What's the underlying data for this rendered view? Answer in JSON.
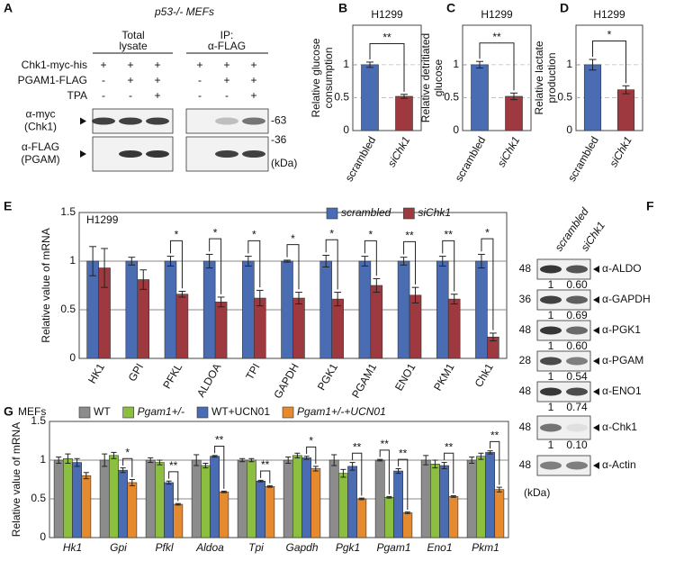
{
  "chart_data": [
    {
      "label": "B",
      "type": "bar",
      "title": "H1299",
      "ylabel": [
        "Relative glucose",
        "consumption"
      ],
      "categories": [
        "scrambled",
        "siChk1"
      ],
      "values": [
        1.0,
        0.52
      ],
      "errors": [
        0.04,
        0.03
      ],
      "colors": [
        "#4a6cb3",
        "#9e3a3f"
      ],
      "ylim": [
        0,
        1.6
      ],
      "yticks": [
        0,
        0.5,
        1
      ],
      "grid": true,
      "significance": "**"
    },
    {
      "label": "C",
      "type": "bar",
      "title": "H1299",
      "ylabel": [
        "Relative detritiated",
        "glucose"
      ],
      "categories": [
        "scrambled",
        "siChk1"
      ],
      "values": [
        1.0,
        0.52
      ],
      "errors": [
        0.05,
        0.05
      ],
      "colors": [
        "#4a6cb3",
        "#9e3a3f"
      ],
      "ylim": [
        0,
        1.6
      ],
      "yticks": [
        0,
        0.5,
        1
      ],
      "grid": true,
      "significance": "**"
    },
    {
      "label": "D",
      "type": "bar",
      "title": "H1299",
      "ylabel": [
        "Relative lactate",
        "production"
      ],
      "categories": [
        "scrambled",
        "siChk1"
      ],
      "values": [
        1.0,
        0.62
      ],
      "errors": [
        0.08,
        0.06
      ],
      "colors": [
        "#4a6cb3",
        "#9e3a3f"
      ],
      "ylim": [
        0,
        1.6
      ],
      "yticks": [
        0,
        0.5,
        1
      ],
      "grid": true,
      "significance": "*"
    },
    {
      "label": "E",
      "type": "grouped-bar",
      "annotation": "H1299",
      "ylabel": [
        "Relative value of mRNA"
      ],
      "categories": [
        "HK1",
        "GPI",
        "PFKL",
        "ALDOA",
        "TPI",
        "GAPDH",
        "PGK1",
        "PGAM1",
        "ENO1",
        "PKM1",
        "Chk1"
      ],
      "series": [
        {
          "name": "scrambled",
          "color": "#4a6cb3",
          "values": [
            1,
            1,
            1,
            1,
            1,
            1,
            1,
            1,
            1,
            1,
            1
          ],
          "errors": [
            0.15,
            0.04,
            0.05,
            0.07,
            0.05,
            0.01,
            0.06,
            0.05,
            0.04,
            0.05,
            0.07
          ]
        },
        {
          "name": "siChk1",
          "color": "#9e3a3f",
          "values": [
            0.93,
            0.81,
            0.66,
            0.58,
            0.62,
            0.62,
            0.61,
            0.75,
            0.65,
            0.61,
            0.22
          ],
          "errors": [
            0.2,
            0.1,
            0.03,
            0.05,
            0.08,
            0.06,
            0.07,
            0.07,
            0.08,
            0.05,
            0.04
          ]
        }
      ],
      "significance": [
        [],
        [],
        [
          "*"
        ],
        [
          "*"
        ],
        [
          "*"
        ],
        [
          "*"
        ],
        [
          "*"
        ],
        [
          "*"
        ],
        [
          "**"
        ],
        [
          "**"
        ],
        [
          "*"
        ]
      ],
      "ylim": [
        0,
        1.5
      ],
      "yticks": [
        0,
        0.5,
        1,
        1.5
      ],
      "grid": true,
      "legend": "top-right",
      "rotate_labels": true
    },
    {
      "label": "G",
      "type": "grouped-bar",
      "annotation": "MEFs",
      "ylabel": [
        "Relative value of mRNA"
      ],
      "categories": [
        "Hk1",
        "Gpi",
        "Pfkl",
        "Aldoa",
        "Tpi",
        "Gapdh",
        "Pgk1",
        "Pgam1",
        "Eno1",
        "Pkm1"
      ],
      "series": [
        {
          "name": "WT",
          "color": "#8c8c8c",
          "values": [
            1,
            1,
            1,
            1,
            1,
            1,
            1,
            1,
            1,
            1
          ],
          "errors": [
            0.04,
            0.08,
            0.03,
            0.07,
            0.02,
            0.04,
            0.07,
            0.01,
            0.06,
            0.04
          ]
        },
        {
          "name": "Pgam1+/-",
          "color": "#8cbf3f",
          "values": [
            1.02,
            1.06,
            0.97,
            0.93,
            1.0,
            1.06,
            0.83,
            0.52,
            0.95,
            1.05
          ],
          "errors": [
            0.06,
            0.04,
            0.03,
            0.03,
            0.02,
            0.03,
            0.05,
            0.01,
            0.05,
            0.04
          ]
        },
        {
          "name": "WT+UCN01",
          "color": "#4a6cb3",
          "values": [
            0.97,
            0.87,
            0.71,
            1.05,
            0.73,
            1.03,
            0.92,
            0.86,
            0.93,
            1.1
          ],
          "errors": [
            0.05,
            0.03,
            0.02,
            0.01,
            0.01,
            0.02,
            0.05,
            0.03,
            0.04,
            0.02
          ]
        },
        {
          "name": "Pgam1+/-+UCN01",
          "color": "#e58a2e",
          "values": [
            0.8,
            0.71,
            0.43,
            0.59,
            0.66,
            0.89,
            0.5,
            0.32,
            0.53,
            0.62
          ],
          "errors": [
            0.04,
            0.04,
            0.01,
            0.01,
            0.01,
            0.03,
            0.01,
            0.01,
            0.01,
            0.03
          ]
        }
      ],
      "significance": [
        [],
        [
          "*"
        ],
        [
          "**"
        ],
        [
          "**"
        ],
        [
          "**"
        ],
        [
          "*"
        ],
        [
          "**"
        ],
        [
          "**",
          "**"
        ],
        [
          "**"
        ],
        [
          "**"
        ]
      ],
      "ylim": [
        0,
        1.5
      ],
      "yticks": [
        0,
        0.5,
        1,
        1.5
      ],
      "grid": true,
      "legend": "top"
    }
  ],
  "blot_a": {
    "label": "A",
    "title": "p53-/- MEFs",
    "groups": [
      {
        "lines": [
          "Total",
          "lysate"
        ]
      },
      {
        "lines": [
          "IP:",
          "α-FLAG"
        ]
      }
    ],
    "rows": [
      {
        "name": "Chk1-myc-his",
        "signs": [
          "+",
          "+",
          "+",
          "+",
          "+",
          "+"
        ]
      },
      {
        "name": "PGAM1-FLAG",
        "signs": [
          "-",
          "+",
          "+",
          "-",
          "+",
          "+"
        ]
      },
      {
        "name": "TPA",
        "signs": [
          "-",
          "-",
          "+",
          "-",
          "-",
          "+"
        ]
      }
    ],
    "blots": [
      {
        "lines": [
          "α-myc",
          "(Chk1)"
        ],
        "marker": "-63"
      },
      {
        "lines": [
          "α-FLAG",
          "(PGAM)"
        ],
        "marker": "-36"
      }
    ],
    "unit": "(kDa)"
  },
  "blot_f": {
    "label": "F",
    "lanes": [
      "scrambled",
      "siChk1"
    ],
    "rows": [
      {
        "marker": 48,
        "antibody": "α-ALDO",
        "quant": [
          "1",
          "0.60"
        ]
      },
      {
        "marker": 36,
        "antibody": "α-GAPDH",
        "quant": [
          "1",
          "0.69"
        ]
      },
      {
        "marker": 48,
        "antibody": "α-PGK1",
        "quant": [
          "1",
          "0.60"
        ]
      },
      {
        "marker": 28,
        "antibody": "α-PGAM",
        "quant": [
          "1",
          "0.54"
        ]
      },
      {
        "marker": 48,
        "antibody": "α-ENO1",
        "quant": [
          "1",
          "0.74"
        ]
      },
      {
        "marker": 48,
        "antibody": "α-Chk1",
        "quant": [
          "1",
          "0.10"
        ]
      },
      {
        "marker": 48,
        "antibody": "α-Actin"
      }
    ],
    "unit": "(kDa)"
  }
}
